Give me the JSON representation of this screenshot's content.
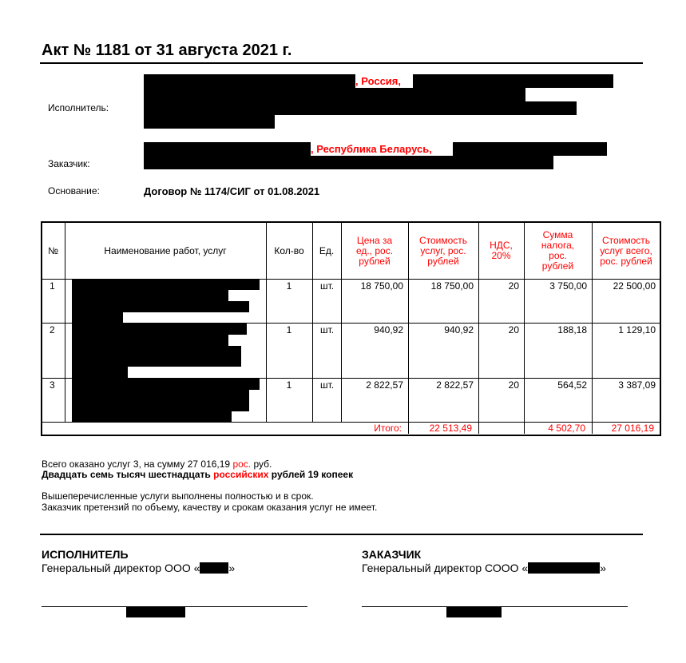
{
  "title": "Акт № 1181 от 31 августа 2021 г.",
  "parties": {
    "executor_label": "Исполнитель:",
    "executor_country": ", Россия,",
    "customer_label": "Заказчик:",
    "customer_country": ", Республика Беларусь,",
    "basis_label": "Основание:",
    "basis_value": "Договор № 1174/СИГ от 01.08.2021"
  },
  "table": {
    "headers": [
      "№",
      "Наименование работ, услуг",
      "Кол-во",
      "Ед.",
      "Цена за ед., рос. рублей",
      "Стоимость услуг, рос. рублей",
      "НДС, 20%",
      "Сумма налога, рос. рублей",
      "Стоимость услуг всего, рос. рублей"
    ],
    "rows": [
      {
        "n": "1",
        "qty": "1",
        "unit": "шт.",
        "price": "18 750,00",
        "cost": "18 750,00",
        "vat": "20",
        "tax": "3 750,00",
        "total": "22 500,00"
      },
      {
        "n": "2",
        "qty": "1",
        "unit": "шт.",
        "price": "940,92",
        "cost": "940,92",
        "vat": "20",
        "tax": "188,18",
        "total": "1 129,10"
      },
      {
        "n": "3",
        "qty": "1",
        "unit": "шт.",
        "price": "2 822,57",
        "cost": "2 822,57",
        "vat": "20",
        "tax": "564,52",
        "total": "3 387,09"
      }
    ],
    "totals": {
      "label": "Итого:",
      "cost": "22 513,49",
      "tax": "4 502,70",
      "total": "27 016,19"
    }
  },
  "summary": {
    "line1_a": "Всего оказано услуг 3, на сумму 27 016,19 ",
    "line1_red": "рос.",
    "line1_b": " руб.",
    "line2_a": "Двадцать семь тысяч шестнадцать ",
    "line2_red": "российских",
    "line2_b": " рублей 19 копеек",
    "note1": "Вышеперечисленные услуги выполнены полностью и в срок.",
    "note2": "Заказчик претензий по объему, качеству и срокам оказания услуг не имеет."
  },
  "signatures": {
    "executor_title": "ИСПОЛНИТЕЛЬ",
    "executor_position_a": "Генеральный директор ООО «",
    "executor_position_b": "»",
    "customer_title": "ЗАКАЗЧИК",
    "customer_position_a": "Генеральный директор СООО «",
    "customer_position_b": "»"
  },
  "colors": {
    "accent": "#ff0000"
  }
}
